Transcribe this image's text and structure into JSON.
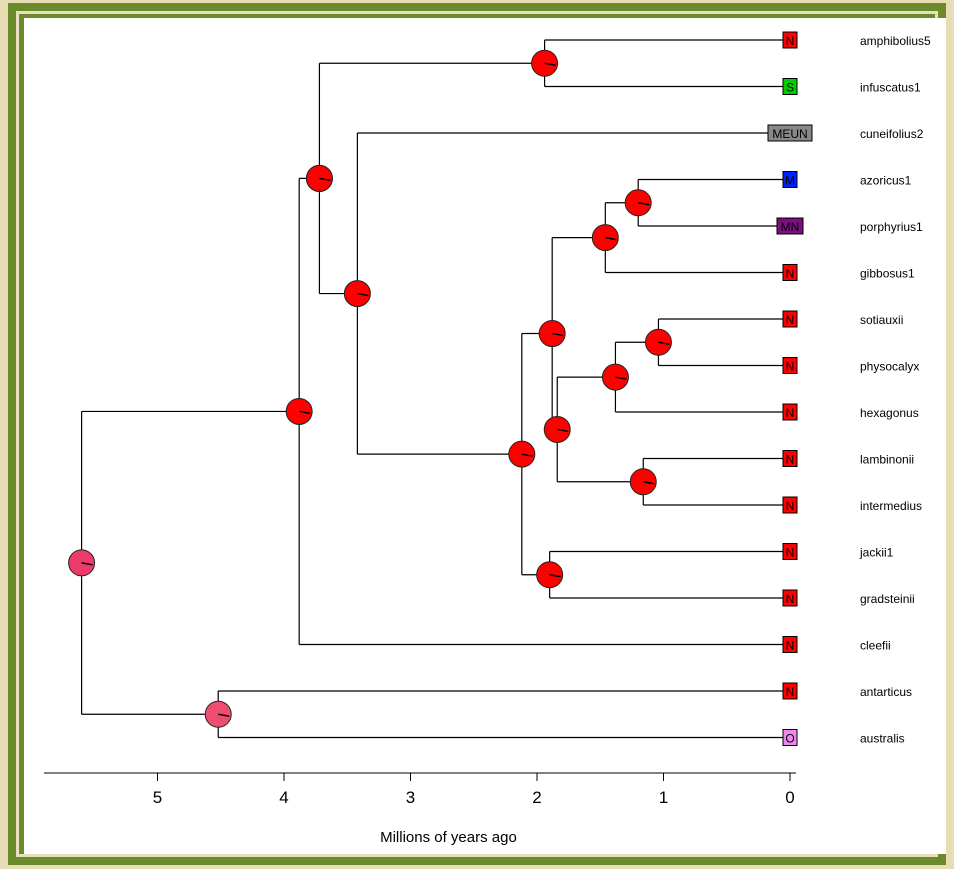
{
  "chart_data": {
    "type": "phylogenetic-tree",
    "xlabel": "Millions of years ago",
    "x_ticks": [
      5,
      4,
      3,
      2,
      1,
      0
    ],
    "xlim": [
      5.75,
      0
    ],
    "colors": {
      "N": "#ff0000",
      "S": "#00cc00",
      "M": "#0022ff",
      "MN": "#7a1080",
      "MEUN": "#888888",
      "O": "#ee88ee",
      "olive": "#7a6a1a",
      "pink": "#ee3a6a",
      "pinkLight": "#f04c70",
      "violet": "#ee88ee"
    },
    "tips": [
      {
        "name": "amphibolius5",
        "state": "N"
      },
      {
        "name": "infuscatus1",
        "state": "S"
      },
      {
        "name": "cuneifolius2",
        "state": "MEUN"
      },
      {
        "name": "azoricus1",
        "state": "M"
      },
      {
        "name": "porphyrius1",
        "state": "MN"
      },
      {
        "name": "gibbosus1",
        "state": "N"
      },
      {
        "name": "sotiauxii",
        "state": "N"
      },
      {
        "name": "physocalyx",
        "state": "N"
      },
      {
        "name": "hexagonus",
        "state": "N"
      },
      {
        "name": "lambinonii",
        "state": "N"
      },
      {
        "name": "intermedius",
        "state": "N"
      },
      {
        "name": "jackii1",
        "state": "N"
      },
      {
        "name": "gradsteinii",
        "state": "N"
      },
      {
        "name": "cleefii",
        "state": "N"
      },
      {
        "name": "antarticus",
        "state": "N"
      },
      {
        "name": "australis",
        "state": "O"
      }
    ]
  }
}
